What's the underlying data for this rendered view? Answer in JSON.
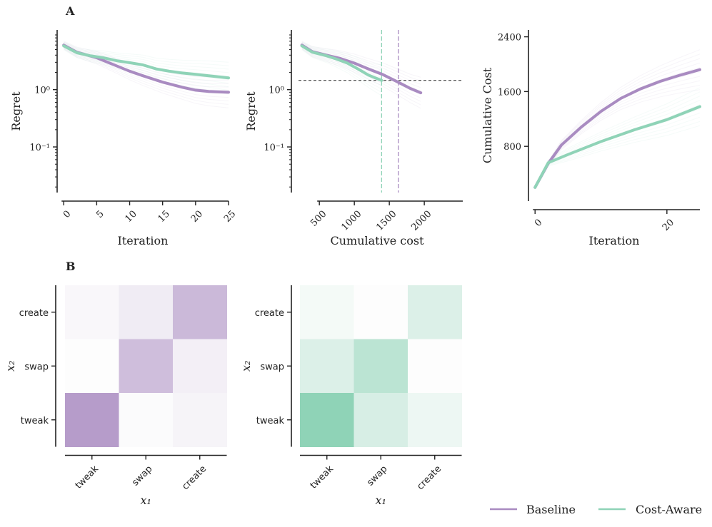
{
  "colors": {
    "baseline": "#a98bc1",
    "cost_aware": "#8fd3b7",
    "axis": "#222222"
  },
  "panel_labels": [
    "A",
    "B"
  ],
  "legend": {
    "items": [
      "Baseline",
      "Cost-Aware"
    ]
  },
  "chart_data": [
    {
      "type": "line",
      "id": "regret-iter",
      "xlabel": "Iteration",
      "ylabel": "Regret",
      "yscale": "log",
      "xlim": [
        -1,
        25
      ],
      "ylim": [
        0.016,
        11
      ],
      "xticks": [
        0,
        5,
        10,
        15,
        20,
        25
      ],
      "xtick_labels": [
        "0",
        "5",
        "10",
        "15",
        "20",
        "25"
      ],
      "yticks": [
        1,
        0.1
      ],
      "ytick_labels": [
        "10⁰",
        "10⁻¹"
      ],
      "series": [
        {
          "name": "Baseline",
          "x": [
            0,
            2,
            5,
            8,
            10,
            12,
            15,
            18,
            20,
            22,
            25
          ],
          "y": [
            6.0,
            4.5,
            3.6,
            2.6,
            2.1,
            1.75,
            1.35,
            1.1,
            0.98,
            0.93,
            0.9
          ]
        },
        {
          "name": "Cost-Aware",
          "x": [
            0,
            2,
            4,
            6,
            8,
            10,
            12,
            14,
            16,
            18,
            20,
            22,
            25
          ],
          "y": [
            5.8,
            4.4,
            3.9,
            3.6,
            3.2,
            2.95,
            2.7,
            2.3,
            2.1,
            1.95,
            1.85,
            1.75,
            1.6
          ]
        }
      ]
    },
    {
      "type": "line",
      "id": "regret-cost",
      "xlabel": "Cumulative cost",
      "ylabel": "Regret",
      "yscale": "log",
      "xlim": [
        100,
        2550
      ],
      "ylim": [
        0.016,
        11
      ],
      "xticks": [
        500,
        1000,
        1500,
        2000
      ],
      "xtick_labels": [
        "500",
        "1000",
        "1500",
        "2000"
      ],
      "yticks": [
        1,
        0.1
      ],
      "ytick_labels": [
        "10⁰",
        "10⁻¹"
      ],
      "hline": 1.45,
      "vlines": [
        {
          "series": "Cost-Aware",
          "x": 1390
        },
        {
          "series": "Baseline",
          "x": 1630
        }
      ],
      "series": [
        {
          "name": "Baseline",
          "x": [
            250,
            400,
            600,
            800,
            1000,
            1200,
            1400,
            1600,
            1800,
            1950
          ],
          "y": [
            6.0,
            4.6,
            4.0,
            3.5,
            2.9,
            2.3,
            1.85,
            1.4,
            1.05,
            0.88
          ]
        },
        {
          "name": "Cost-Aware",
          "x": [
            250,
            400,
            600,
            750,
            900,
            1050,
            1200,
            1300,
            1390
          ],
          "y": [
            5.8,
            4.5,
            3.9,
            3.4,
            2.9,
            2.3,
            1.8,
            1.6,
            1.45
          ]
        }
      ]
    },
    {
      "type": "line",
      "id": "cost-iter",
      "xlabel": "Iteration",
      "ylabel": "Cumulative Cost",
      "yscale": "linear",
      "xlim": [
        -1,
        25
      ],
      "ylim": [
        0,
        2500
      ],
      "xticks": [
        0,
        20
      ],
      "xtick_labels": [
        "0",
        "20"
      ],
      "yticks": [
        800,
        1600,
        2400
      ],
      "ytick_labels": [
        "800",
        "1600",
        "2400"
      ],
      "series": [
        {
          "name": "Baseline",
          "x": [
            0,
            2,
            4,
            7,
            10,
            13,
            16,
            19,
            22,
            25
          ],
          "y": [
            200,
            550,
            820,
            1080,
            1310,
            1500,
            1640,
            1750,
            1840,
            1920
          ]
        },
        {
          "name": "Cost-Aware",
          "x": [
            0,
            2,
            5,
            10,
            15,
            20,
            25
          ],
          "y": [
            200,
            560,
            680,
            870,
            1040,
            1190,
            1380
          ]
        }
      ]
    },
    {
      "type": "heatmap",
      "id": "heat-baseline",
      "color": "baseline",
      "xlabel": "x₁",
      "ylabel": "x₂",
      "x_categories": [
        "tweak",
        "swap",
        "create"
      ],
      "y_categories": [
        "create",
        "swap",
        "tweak"
      ],
      "values": [
        [
          0.05,
          0.15,
          0.6
        ],
        [
          0.0,
          0.55,
          0.12
        ],
        [
          0.85,
          0.02,
          0.08
        ]
      ]
    },
    {
      "type": "heatmap",
      "id": "heat-costaware",
      "color": "cost_aware",
      "xlabel": "x₁",
      "ylabel": "x₂",
      "x_categories": [
        "tweak",
        "swap",
        "create"
      ],
      "y_categories": [
        "create",
        "swap",
        "tweak"
      ],
      "values": [
        [
          0.08,
          0.0,
          0.3
        ],
        [
          0.3,
          0.6,
          0.0
        ],
        [
          1.0,
          0.35,
          0.15
        ]
      ]
    }
  ]
}
